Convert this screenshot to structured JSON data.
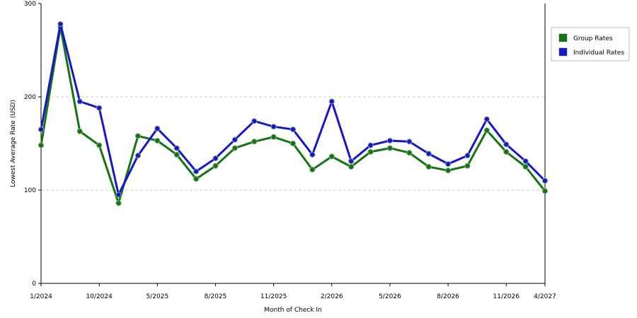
{
  "chart_data": {
    "type": "line",
    "xlabel": "Month of Check In",
    "ylabel": "Lowest Average Rate (USD)",
    "ylim": [
      0,
      300
    ],
    "yticks": [
      0,
      100,
      200,
      300
    ],
    "grid": "horizontal-dashed",
    "legend_position": "right",
    "x_tick_labels": [
      {
        "index": 0,
        "label": "1/2024"
      },
      {
        "index": 3,
        "label": "10/2024"
      },
      {
        "index": 6,
        "label": "5/2025"
      },
      {
        "index": 9,
        "label": "8/2025"
      },
      {
        "index": 12,
        "label": "11/2025"
      },
      {
        "index": 15,
        "label": "2/2026"
      },
      {
        "index": 18,
        "label": "5/2026"
      },
      {
        "index": 21,
        "label": "8/2026"
      },
      {
        "index": 24,
        "label": "11/2026"
      },
      {
        "index": 26,
        "label": "4/2027"
      }
    ],
    "series": [
      {
        "name": "Group Rates",
        "color": "#127512",
        "values": [
          148,
          275,
          163,
          148,
          86,
          158,
          153,
          138,
          112,
          126,
          145,
          152,
          157,
          150,
          122,
          136,
          125,
          141,
          145,
          140,
          125,
          121,
          126,
          164,
          141,
          125,
          99
        ]
      },
      {
        "name": "Individual Rates",
        "color": "#1717c9",
        "values": [
          165,
          278,
          195,
          188,
          95,
          137,
          166,
          145,
          120,
          134,
          154,
          174,
          168,
          165,
          138,
          195,
          131,
          148,
          153,
          152,
          139,
          128,
          137,
          176,
          149,
          131,
          110
        ]
      }
    ]
  }
}
